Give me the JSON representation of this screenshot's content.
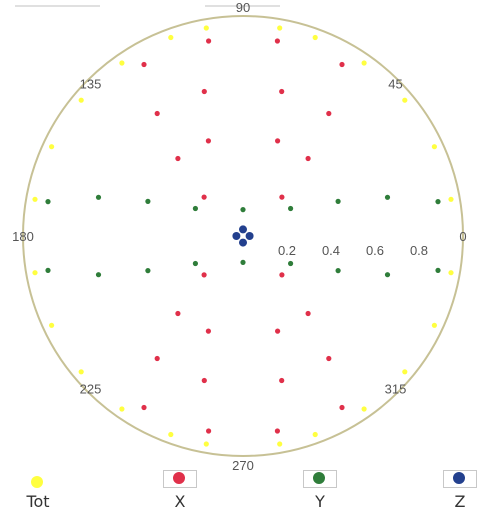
{
  "chart_data": {
    "type": "polar-scatter",
    "angle_labels": [
      "90",
      "45",
      "135",
      "180",
      "0",
      "225",
      "270",
      "315"
    ],
    "radial_tick_labels": [
      "0.2",
      "0.4",
      "0.6",
      "0.8"
    ],
    "r_max": 1.0,
    "legend": [
      "Tot",
      "X",
      "Y",
      "Z"
    ],
    "series": [
      {
        "name": "Tot",
        "color": "#ffff40",
        "points": [
          [
            0.96,
            10
          ],
          [
            0.96,
            25
          ],
          [
            0.96,
            40
          ],
          [
            0.96,
            55
          ],
          [
            0.96,
            70
          ],
          [
            0.96,
            80
          ],
          [
            0.96,
            100
          ],
          [
            0.96,
            110
          ],
          [
            0.96,
            125
          ],
          [
            0.96,
            140
          ],
          [
            0.96,
            155
          ],
          [
            0.96,
            170
          ],
          [
            0.96,
            190
          ],
          [
            0.96,
            205
          ],
          [
            0.96,
            220
          ],
          [
            0.96,
            235
          ],
          [
            0.96,
            250
          ],
          [
            0.96,
            260
          ],
          [
            0.96,
            280
          ],
          [
            0.96,
            290
          ],
          [
            0.96,
            305
          ],
          [
            0.96,
            320
          ],
          [
            0.96,
            335
          ],
          [
            0.96,
            350
          ]
        ]
      },
      {
        "name": "X",
        "color": "#e0304a",
        "points": [
          [
            0.9,
            60
          ],
          [
            0.9,
            80
          ],
          [
            0.9,
            100
          ],
          [
            0.9,
            120
          ],
          [
            0.68,
            55
          ],
          [
            0.68,
            75
          ],
          [
            0.68,
            105
          ],
          [
            0.68,
            125
          ],
          [
            0.46,
            50
          ],
          [
            0.46,
            70
          ],
          [
            0.46,
            110
          ],
          [
            0.46,
            130
          ],
          [
            0.25,
            45
          ],
          [
            0.25,
            135
          ],
          [
            0.9,
            240
          ],
          [
            0.9,
            260
          ],
          [
            0.9,
            280
          ],
          [
            0.9,
            300
          ],
          [
            0.68,
            235
          ],
          [
            0.68,
            255
          ],
          [
            0.68,
            285
          ],
          [
            0.68,
            305
          ],
          [
            0.46,
            230
          ],
          [
            0.46,
            250
          ],
          [
            0.46,
            290
          ],
          [
            0.46,
            310
          ],
          [
            0.25,
            225
          ],
          [
            0.25,
            315
          ]
        ]
      },
      {
        "name": "Y",
        "color": "#2f7d3a",
        "points": [
          [
            0.9,
            10
          ],
          [
            0.68,
            15
          ],
          [
            0.46,
            20
          ],
          [
            0.25,
            30
          ],
          [
            0.9,
            170
          ],
          [
            0.68,
            165
          ],
          [
            0.46,
            160
          ],
          [
            0.25,
            150
          ],
          [
            0.9,
            190
          ],
          [
            0.68,
            195
          ],
          [
            0.46,
            200
          ],
          [
            0.25,
            210
          ],
          [
            0.9,
            350
          ],
          [
            0.68,
            345
          ],
          [
            0.46,
            340
          ],
          [
            0.25,
            330
          ],
          [
            0.12,
            270
          ],
          [
            0.12,
            90
          ]
        ]
      },
      {
        "name": "Z",
        "color": "#23408e",
        "points": [
          [
            0.03,
            0
          ],
          [
            0.03,
            90
          ],
          [
            0.03,
            180
          ],
          [
            0.03,
            270
          ]
        ]
      }
    ]
  }
}
